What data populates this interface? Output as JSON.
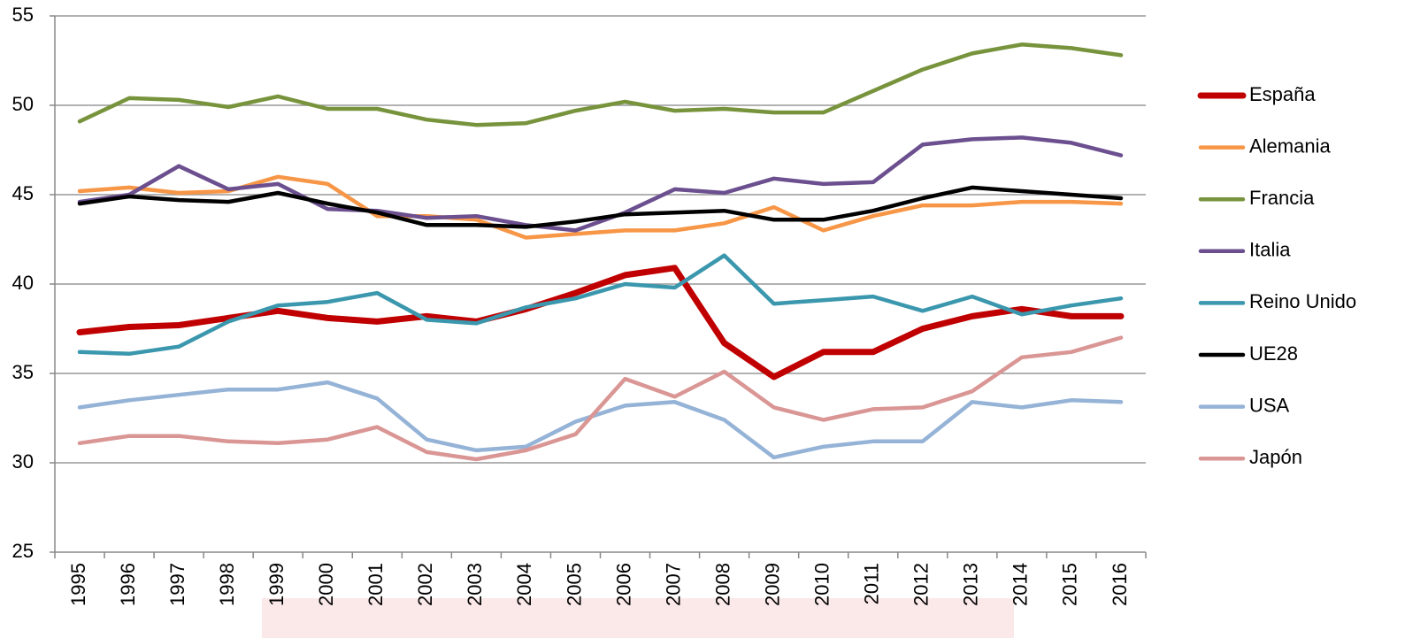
{
  "chart_data": {
    "type": "line",
    "categories": [
      "1995",
      "1996",
      "1997",
      "1998",
      "1999",
      "2000",
      "2001",
      "2002",
      "2003",
      "2004",
      "2005",
      "2006",
      "2007",
      "2008",
      "2009",
      "2010",
      "2011",
      "2012",
      "2013",
      "2014",
      "2015",
      "2016"
    ],
    "ylim": [
      25,
      55
    ],
    "yticks": [
      25,
      30,
      35,
      40,
      45,
      50,
      55
    ],
    "grid": true,
    "legend": "right",
    "series": [
      {
        "name": "España",
        "color": "#c00000",
        "values": [
          37.3,
          37.6,
          37.7,
          38.1,
          38.5,
          38.1,
          37.9,
          38.2,
          37.9,
          38.6,
          39.5,
          40.5,
          40.9,
          36.7,
          34.8,
          36.2,
          36.2,
          37.5,
          38.2,
          38.6,
          38.2,
          38.2
        ]
      },
      {
        "name": "Alemania",
        "color": "#f79646",
        "values": [
          45.2,
          45.4,
          45.1,
          45.2,
          46.0,
          45.6,
          43.8,
          43.8,
          43.6,
          42.6,
          42.8,
          43.0,
          43.0,
          43.4,
          44.3,
          43.0,
          43.8,
          44.4,
          44.4,
          44.6,
          44.6,
          44.5
        ]
      },
      {
        "name": "Francia",
        "color": "#77933c",
        "values": [
          49.1,
          50.4,
          50.3,
          49.9,
          50.5,
          49.8,
          49.8,
          49.2,
          48.9,
          49.0,
          49.7,
          50.2,
          49.7,
          49.8,
          49.6,
          49.6,
          50.8,
          52.0,
          52.9,
          53.4,
          53.2,
          52.8
        ]
      },
      {
        "name": "Italia",
        "color": "#6b4f8f",
        "values": [
          44.6,
          45.0,
          46.6,
          45.3,
          45.6,
          44.2,
          44.1,
          43.7,
          43.8,
          43.3,
          43.0,
          44.0,
          45.3,
          45.1,
          45.9,
          45.6,
          45.7,
          47.8,
          48.1,
          48.2,
          47.9,
          47.2
        ]
      },
      {
        "name": "Reino Unido",
        "color": "#3a97ad",
        "values": [
          36.2,
          36.1,
          36.5,
          37.9,
          38.8,
          39.0,
          39.5,
          38.0,
          37.8,
          38.7,
          39.2,
          40.0,
          39.8,
          41.6,
          38.9,
          39.1,
          39.3,
          38.5,
          39.3,
          38.3,
          38.8,
          39.2
        ]
      },
      {
        "name": "UE28",
        "color": "#000000",
        "values": [
          44.5,
          44.9,
          44.7,
          44.6,
          45.1,
          44.5,
          44.0,
          43.3,
          43.3,
          43.2,
          43.5,
          43.9,
          44.0,
          44.1,
          43.6,
          43.6,
          44.1,
          44.8,
          45.4,
          45.2,
          45.0,
          44.8
        ]
      },
      {
        "name": "USA",
        "color": "#95b3d7",
        "values": [
          33.1,
          33.5,
          33.8,
          34.1,
          34.1,
          34.5,
          33.6,
          31.3,
          30.7,
          30.9,
          32.3,
          33.2,
          33.4,
          32.4,
          30.3,
          30.9,
          31.2,
          31.2,
          33.4,
          33.1,
          33.5,
          33.4
        ]
      },
      {
        "name": "Japón",
        "color": "#d99694",
        "values": [
          31.1,
          31.5,
          31.5,
          31.2,
          31.1,
          31.3,
          32.0,
          30.6,
          30.2,
          30.7,
          31.6,
          34.7,
          33.7,
          35.1,
          33.1,
          32.4,
          33.0,
          33.1,
          34.0,
          35.9,
          36.2,
          37.0
        ]
      }
    ]
  }
}
